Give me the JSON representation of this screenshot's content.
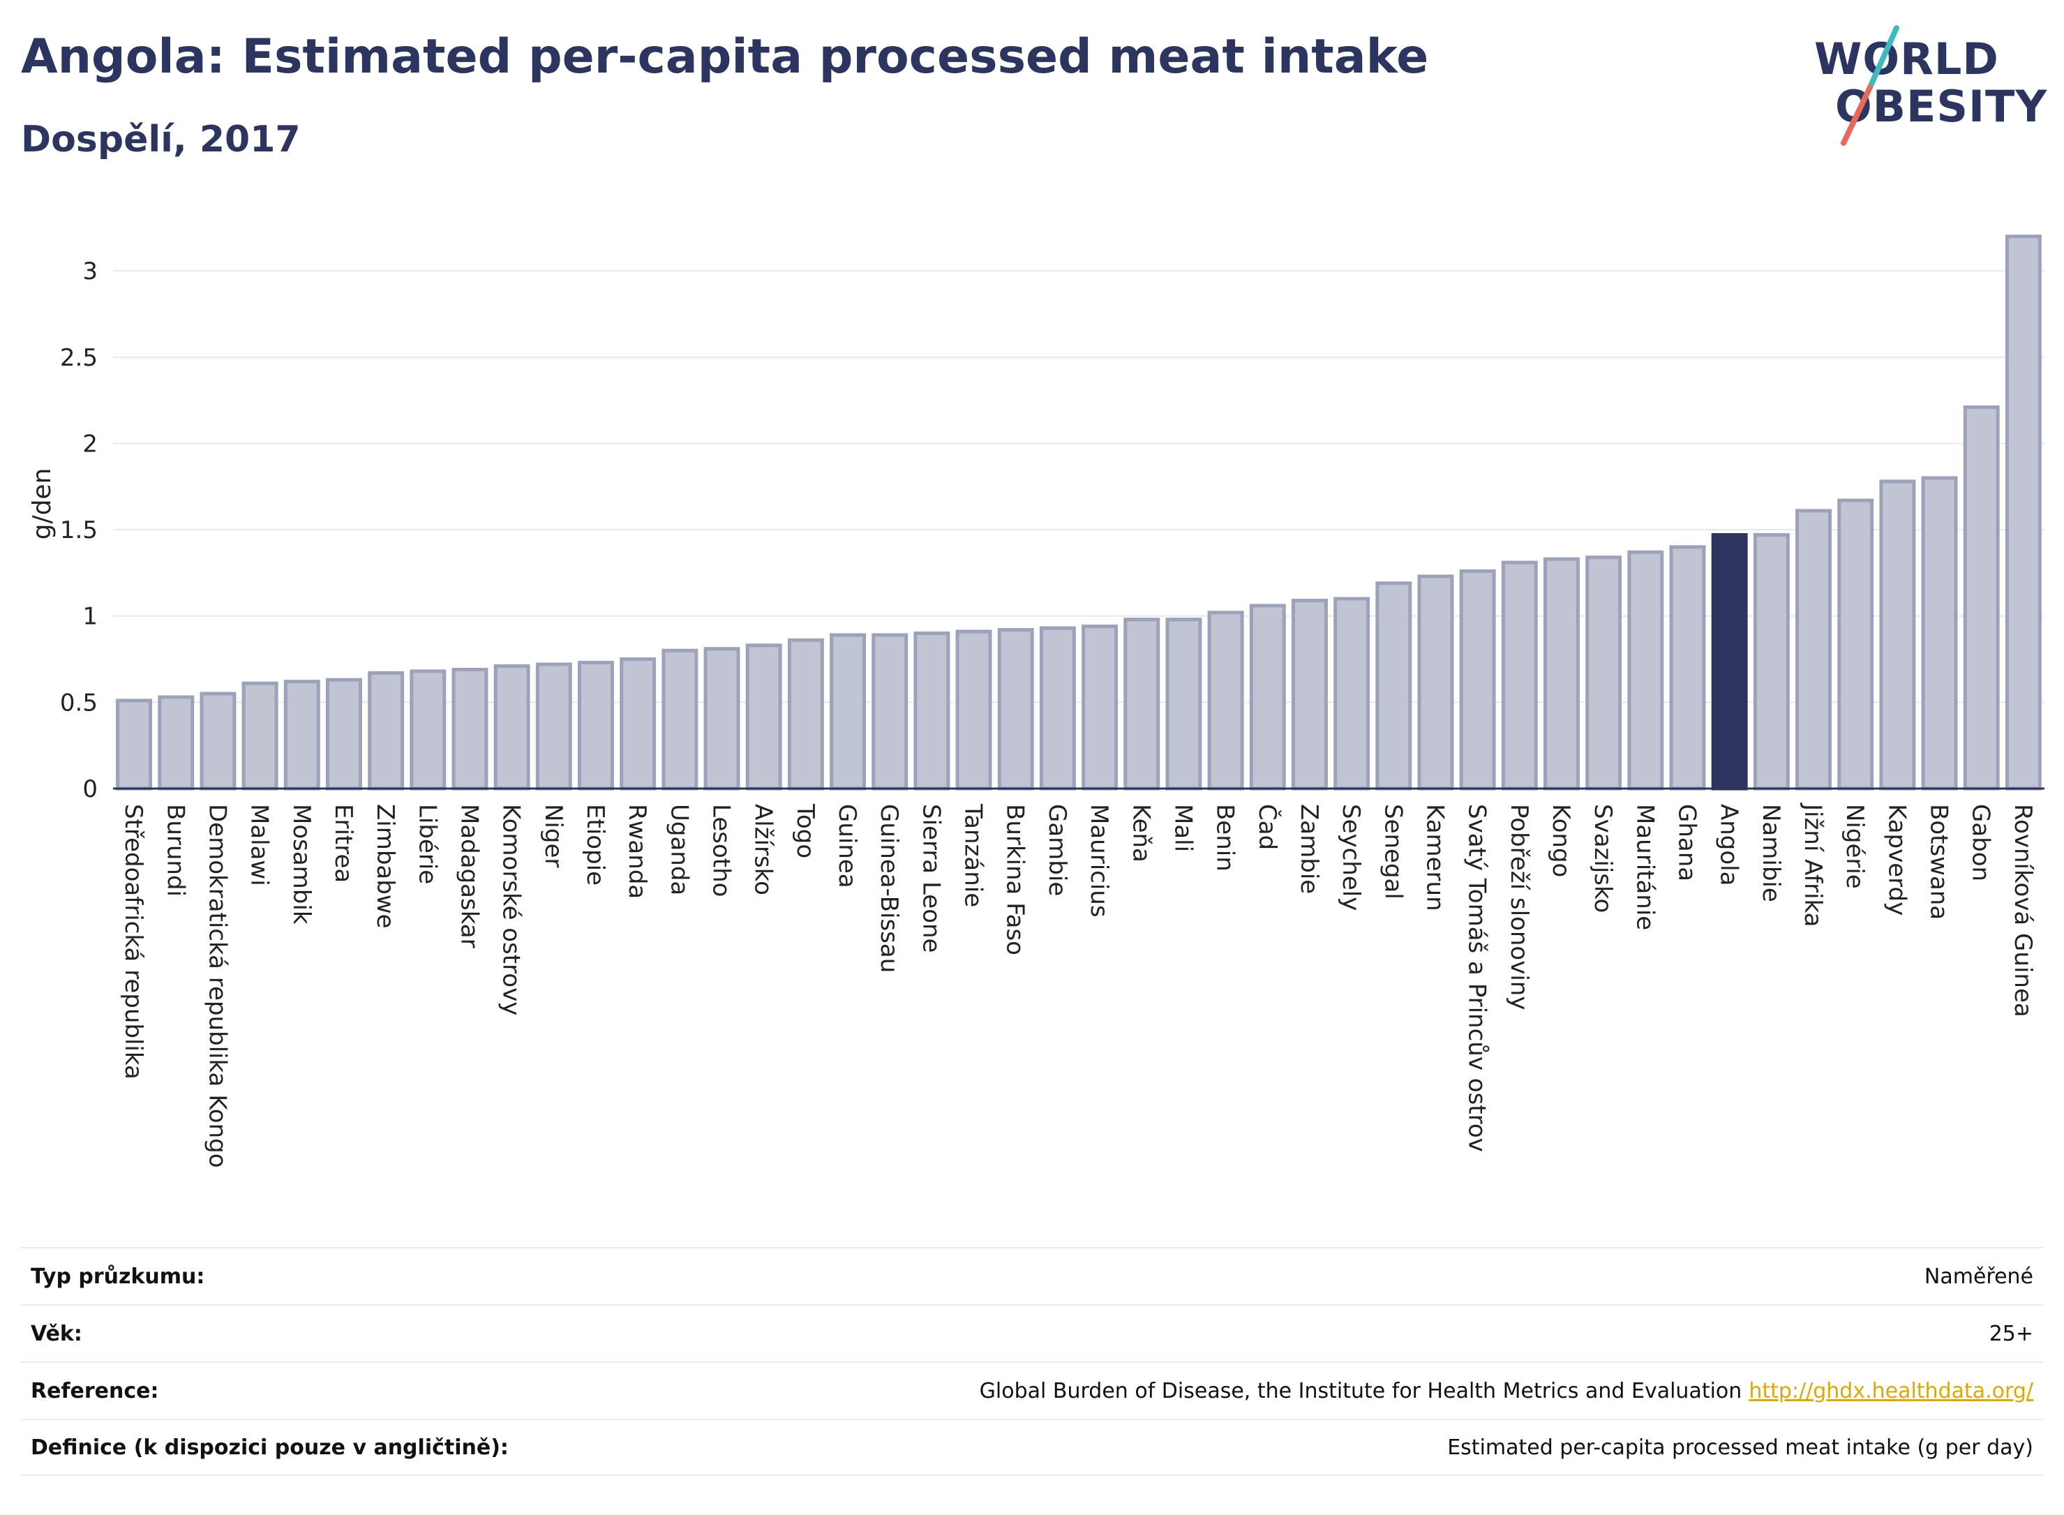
{
  "header": {
    "title": "Angola: Estimated per-capita processed meat intake",
    "subtitle": "Dospělí, 2017"
  },
  "logo": {
    "line1": "WORLD",
    "line2": "OBESITY",
    "colors": {
      "text": "#2c3560",
      "slash_top": "#3fb8c0",
      "slash_bottom": "#e8685a"
    }
  },
  "chart_data": {
    "type": "bar",
    "ylabel": "g/den",
    "ylim": [
      0,
      3.3
    ],
    "yticks": [
      0,
      0.5,
      1,
      1.5,
      2,
      2.5,
      3
    ],
    "ytick_labels": [
      "0",
      "0.5",
      "1",
      "1.5",
      "2",
      "2.5",
      "3"
    ],
    "grid": true,
    "highlight": "Angola",
    "colors": {
      "bar": "#c0c4d3",
      "bar_edge": "#9ca2ba",
      "highlight": "#2c3560",
      "grid": "#e6e8ec",
      "axis": "#2c3560"
    },
    "categories": [
      "Středoafrická republika",
      "Burundi",
      "Demokratická republika Kongo",
      "Malawi",
      "Mosambik",
      "Eritrea",
      "Zimbabwe",
      "Libérie",
      "Madagaskar",
      "Komorské ostrovy",
      "Niger",
      "Etiopie",
      "Rwanda",
      "Uganda",
      "Lesotho",
      "Alžírsko",
      "Togo",
      "Guinea",
      "Guinea-Bissau",
      "Sierra Leone",
      "Tanzánie",
      "Burkina Faso",
      "Gambie",
      "Mauricius",
      "Keňa",
      "Mali",
      "Benin",
      "Čad",
      "Zambie",
      "Seychely",
      "Senegal",
      "Kamerun",
      "Svatý Tomáš a Princův ostrov",
      "Pobřeží slonoviny",
      "Kongo",
      "Svazijsko",
      "Mauritánie",
      "Ghana",
      "Angola",
      "Namibie",
      "Jižní Afrika",
      "Nigérie",
      "Kapverdy",
      "Botswana",
      "Gabon",
      "Rovníková Guinea"
    ],
    "values": [
      0.51,
      0.53,
      0.55,
      0.61,
      0.62,
      0.63,
      0.67,
      0.68,
      0.69,
      0.71,
      0.72,
      0.73,
      0.75,
      0.8,
      0.81,
      0.83,
      0.86,
      0.89,
      0.89,
      0.9,
      0.91,
      0.92,
      0.93,
      0.94,
      0.98,
      0.98,
      1.02,
      1.06,
      1.09,
      1.1,
      1.19,
      1.23,
      1.26,
      1.31,
      1.33,
      1.34,
      1.37,
      1.4,
      1.47,
      1.47,
      1.61,
      1.67,
      1.78,
      1.8,
      2.21,
      3.2
    ]
  },
  "info": [
    {
      "label": "Typ průzkumu:",
      "value": "Naměřené"
    },
    {
      "label": "Věk:",
      "value": "25+"
    },
    {
      "label": "Reference:",
      "value": "Global Burden of Disease, the Institute for Health Metrics and Evaluation",
      "link": "http://ghdx.healthdata.org/"
    },
    {
      "label": "Definice (k dispozici pouze v angličtině):",
      "value": "Estimated per-capita processed meat intake (g per day)"
    }
  ]
}
